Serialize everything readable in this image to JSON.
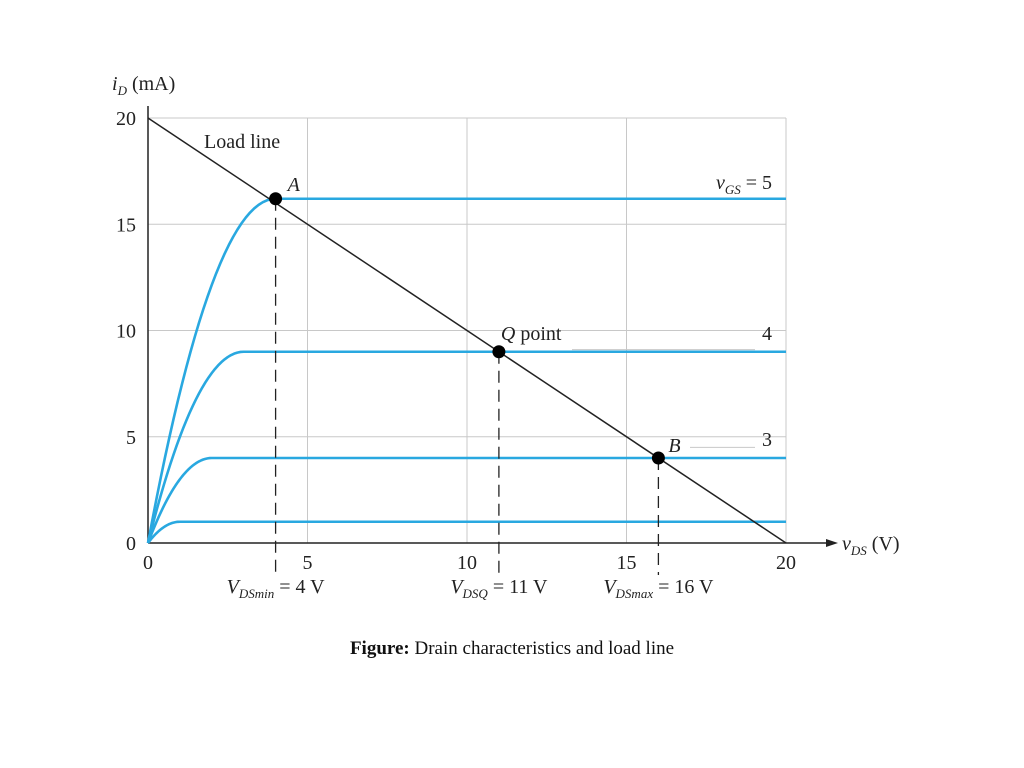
{
  "chart_data": {
    "type": "line",
    "x_label_var": "v",
    "x_label_sub": "DS",
    "x_label_unit": " (V)",
    "y_label_var": "i",
    "y_label_sub": "D",
    "y_label_unit": " (mA)",
    "xlim": [
      0,
      20
    ],
    "ylim": [
      0,
      20
    ],
    "x_ticks": [
      "0",
      "5",
      "10",
      "15",
      "20"
    ],
    "y_ticks": [
      "0",
      "5",
      "10",
      "15",
      "20"
    ],
    "grid": true,
    "series": [
      {
        "label": "v_GS = 5",
        "label_text": "5",
        "saturation_current": 16.2,
        "knee_voltage": 4
      },
      {
        "label": "4",
        "label_text": "4",
        "saturation_current": 9,
        "knee_voltage": 3
      },
      {
        "label": "3",
        "label_text": "3",
        "saturation_current": 4,
        "knee_voltage": 2
      },
      {
        "label": "",
        "label_text": "",
        "saturation_current": 1,
        "knee_voltage": 1
      }
    ],
    "load_line": {
      "label": "Load line",
      "x": [
        0,
        20
      ],
      "y": [
        20,
        0
      ]
    },
    "points": [
      {
        "name": "A",
        "x": 4,
        "y": 16.2
      },
      {
        "name": "Q point",
        "x": 11,
        "y": 9
      },
      {
        "name": "B",
        "x": 16,
        "y": 4
      }
    ],
    "v_gs_label_var": "v",
    "v_gs_label_sub": "GS",
    "v_gs_label_eq": " = 5",
    "markers": [
      {
        "var": "V",
        "sub": "DSmin",
        "rest": " = 4 V",
        "x": 4
      },
      {
        "var": "V",
        "sub": "DSQ",
        "rest": " = 11 V",
        "x": 11
      },
      {
        "var": "V",
        "sub": "DSmax",
        "rest": " = 16 V",
        "x": 16
      }
    ],
    "colors": {
      "curve": "#29a8e0",
      "load_line": "#222222",
      "grid": "#c8c8c8",
      "axis": "#222222"
    }
  },
  "caption": {
    "bold": "Figure:",
    "text": " Drain characteristics and load line"
  }
}
